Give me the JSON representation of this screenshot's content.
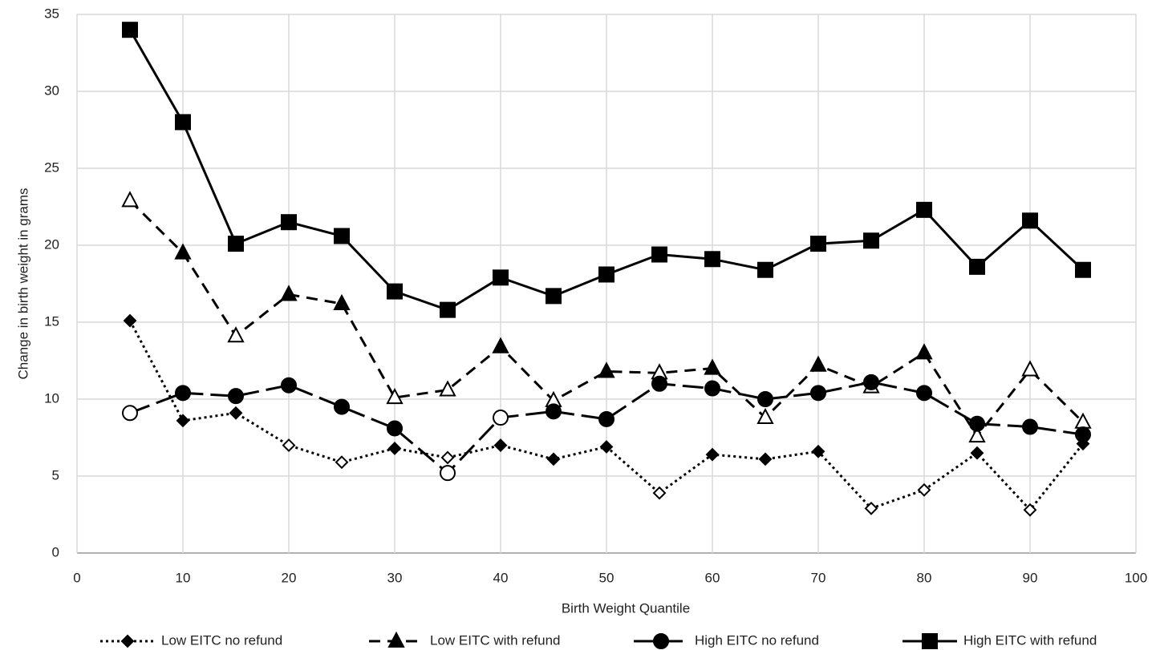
{
  "chart_data": {
    "type": "line",
    "x_label": "Birth Weight Quantile",
    "y_label": "Change in birth weight in grams",
    "x": [
      5,
      10,
      15,
      20,
      25,
      30,
      35,
      40,
      45,
      50,
      55,
      60,
      65,
      70,
      75,
      80,
      85,
      90,
      95
    ],
    "xlim": [
      0,
      100
    ],
    "xticks": [
      0,
      10,
      20,
      30,
      40,
      50,
      60,
      70,
      80,
      90,
      100
    ],
    "ylim": [
      0,
      35
    ],
    "yticks": [
      0,
      5,
      10,
      15,
      20,
      25,
      30,
      35
    ],
    "grid": true,
    "legend": "bottom",
    "series": [
      {
        "name": "Low EITC no refund",
        "color": "#000000",
        "marker": "diamond",
        "line_style": "dotted",
        "values": [
          15.1,
          8.6,
          9.1,
          7.0,
          5.9,
          6.8,
          6.2,
          7.0,
          6.1,
          6.9,
          3.9,
          6.4,
          6.1,
          6.6,
          2.9,
          4.1,
          6.5,
          2.8,
          7.1
        ],
        "filled": [
          true,
          true,
          true,
          false,
          false,
          true,
          false,
          true,
          true,
          true,
          false,
          true,
          true,
          true,
          false,
          false,
          true,
          false,
          true
        ]
      },
      {
        "name": "Low EITC with refund",
        "color": "#000000",
        "marker": "triangle",
        "line_style": "dashed",
        "values": [
          22.9,
          19.5,
          14.1,
          16.8,
          16.2,
          10.1,
          10.6,
          13.4,
          9.9,
          11.8,
          11.7,
          12.0,
          8.8,
          12.2,
          10.8,
          13.0,
          7.6,
          11.9,
          8.5
        ],
        "filled": [
          false,
          true,
          false,
          true,
          true,
          false,
          false,
          true,
          false,
          true,
          false,
          true,
          false,
          true,
          false,
          true,
          false,
          false,
          false
        ]
      },
      {
        "name": "High EITC no refund",
        "color": "#000000",
        "marker": "circle",
        "line_style": "long-dash",
        "values": [
          9.1,
          10.4,
          10.2,
          10.9,
          9.5,
          8.1,
          5.2,
          8.8,
          9.2,
          8.7,
          11.0,
          10.7,
          10.0,
          10.4,
          11.1,
          10.4,
          8.4,
          8.2,
          7.7
        ],
        "filled": [
          false,
          true,
          true,
          true,
          true,
          true,
          false,
          false,
          true,
          true,
          true,
          true,
          true,
          true,
          true,
          true,
          true,
          true,
          true
        ]
      },
      {
        "name": "High EITC with refund",
        "color": "#000000",
        "marker": "square",
        "line_style": "solid",
        "values": [
          34.0,
          28.0,
          20.1,
          21.5,
          20.6,
          17.0,
          15.8,
          17.9,
          16.7,
          18.1,
          19.4,
          19.1,
          18.4,
          20.1,
          20.3,
          22.3,
          18.6,
          21.6,
          18.4
        ],
        "filled": [
          true,
          true,
          true,
          true,
          true,
          true,
          true,
          true,
          true,
          true,
          true,
          true,
          true,
          true,
          true,
          true,
          true,
          true,
          true
        ]
      }
    ]
  }
}
